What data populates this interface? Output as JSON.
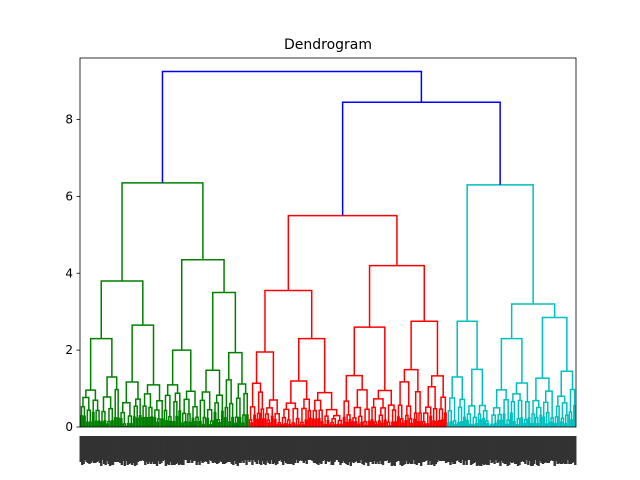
{
  "chart_data": {
    "type": "dendrogram",
    "title": "Dendrogram",
    "xlabel": "",
    "ylabel": "",
    "ylim": [
      0,
      9.6
    ],
    "yticks": [
      0,
      2,
      4,
      6,
      8
    ],
    "grid": false,
    "legend": "none",
    "colors": {
      "green": "#008000",
      "red": "#ff0000",
      "cyan": "#00bfbf",
      "blue": "#0000ff"
    },
    "clusters": [
      {
        "color": "green",
        "merge_height": 6.35,
        "subclusters": [
          {
            "merge_height": 3.8,
            "parts": [
              {
                "merge_height": 2.3,
                "leaf_span": [
                  0,
                  26
                ]
              },
              {
                "merge_height": 2.65,
                "leaf_span": [
                  27,
                  56
                ]
              }
            ]
          },
          {
            "merge_height": 4.35,
            "parts": [
              {
                "merge_height": 2.0,
                "leaf_span": [
                  57,
                  80
                ]
              },
              {
                "merge_height": 3.5,
                "leaf_span": [
                  81,
                  114
                ]
              }
            ]
          }
        ]
      },
      {
        "color": "red",
        "merge_height": 5.5,
        "subclusters": [
          {
            "merge_height": 3.55,
            "parts": [
              {
                "merge_height": 1.95,
                "leaf_span": [
                  115,
                  136
                ]
              },
              {
                "merge_height": 2.3,
                "leaf_span": [
                  137,
                  178
                ]
              }
            ]
          },
          {
            "merge_height": 4.2,
            "parts": [
              {
                "merge_height": 2.6,
                "leaf_span": [
                  179,
                  215
                ]
              },
              {
                "merge_height": 2.75,
                "leaf_span": [
                  216,
                  249
                ]
              }
            ]
          }
        ]
      },
      {
        "color": "cyan",
        "merge_height": 6.3,
        "subclusters": [
          {
            "merge_height": 2.75,
            "parts": [
              {
                "merge_height": 1.3,
                "leaf_span": [
                  250,
                  262
                ]
              },
              {
                "merge_height": 1.5,
                "leaf_span": [
                  263,
                  278
                ]
              }
            ]
          },
          {
            "merge_height": 3.2,
            "parts": [
              {
                "merge_height": 2.3,
                "leaf_span": [
                  279,
                  306
                ]
              },
              {
                "merge_height": 2.85,
                "leaf_span": [
                  307,
                  337
                ]
              }
            ]
          }
        ]
      }
    ],
    "top_links": [
      {
        "color": "blue",
        "height": 8.45,
        "joins": [
          "red",
          "cyan"
        ]
      },
      {
        "color": "blue",
        "height": 9.25,
        "joins": [
          "green",
          "red+cyan"
        ]
      }
    ],
    "leaf_count": 338
  }
}
